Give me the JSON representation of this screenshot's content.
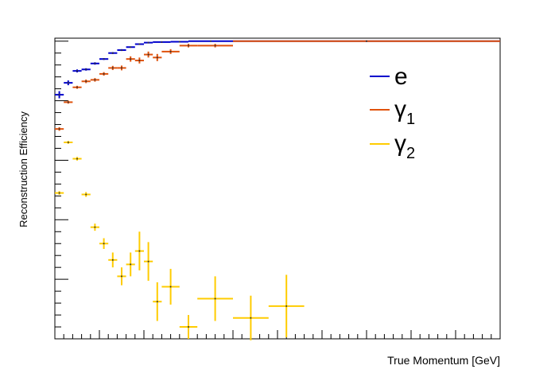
{
  "chart_data": {
    "type": "scatter",
    "xlabel": "True Momentum [GeV]",
    "ylabel": "Reconstruction Efficiency",
    "xlim": [
      0,
      5
    ],
    "ylim": [
      0,
      1.01
    ],
    "x_ticks": [
      "0",
      "0.5",
      "1",
      "1.5",
      "2",
      "2.5",
      "3",
      "3.5",
      "4",
      "4.5",
      "5"
    ],
    "y_ticks": [
      "0",
      "0.2",
      "0.4",
      "0.6",
      "0.8",
      "1"
    ],
    "legend_position": "top-right",
    "series": [
      {
        "name": "e",
        "color": "#0000cc",
        "points": [
          {
            "x": 0.05,
            "y": 0.82,
            "xerr": 0.05,
            "yerr": 0.012
          },
          {
            "x": 0.15,
            "y": 0.86,
            "xerr": 0.05,
            "yerr": 0.008
          },
          {
            "x": 0.25,
            "y": 0.9,
            "xerr": 0.05,
            "yerr": 0.005
          },
          {
            "x": 0.35,
            "y": 0.905,
            "xerr": 0.05,
            "yerr": 0.004
          },
          {
            "x": 0.45,
            "y": 0.925,
            "xerr": 0.05,
            "yerr": 0.004
          },
          {
            "x": 0.55,
            "y": 0.94,
            "xerr": 0.05,
            "yerr": 0.003
          },
          {
            "x": 0.65,
            "y": 0.96,
            "xerr": 0.05,
            "yerr": 0.003
          },
          {
            "x": 0.75,
            "y": 0.97,
            "xerr": 0.05,
            "yerr": 0.003
          },
          {
            "x": 0.85,
            "y": 0.98,
            "xerr": 0.05,
            "yerr": 0.002
          },
          {
            "x": 0.95,
            "y": 0.99,
            "xerr": 0.05,
            "yerr": 0.002
          },
          {
            "x": 1.05,
            "y": 0.995,
            "xerr": 0.05,
            "yerr": 0.002
          },
          {
            "x": 1.2,
            "y": 0.997,
            "xerr": 0.1,
            "yerr": 0.001
          },
          {
            "x": 1.4,
            "y": 0.998,
            "xerr": 0.1,
            "yerr": 0.001
          },
          {
            "x": 1.75,
            "y": 1.0,
            "xerr": 0.25,
            "yerr": 0.0
          },
          {
            "x": 3.5,
            "y": 1.0,
            "xerr": 1.5,
            "yerr": 0.0
          }
        ]
      },
      {
        "name": "γ1",
        "color": "#e0520c",
        "points": [
          {
            "x": 0.05,
            "y": 0.705,
            "xerr": 0.05,
            "yerr": 0.006
          },
          {
            "x": 0.15,
            "y": 0.795,
            "xerr": 0.05,
            "yerr": 0.005
          },
          {
            "x": 0.25,
            "y": 0.845,
            "xerr": 0.05,
            "yerr": 0.005
          },
          {
            "x": 0.35,
            "y": 0.865,
            "xerr": 0.05,
            "yerr": 0.006
          },
          {
            "x": 0.45,
            "y": 0.87,
            "xerr": 0.05,
            "yerr": 0.006
          },
          {
            "x": 0.55,
            "y": 0.89,
            "xerr": 0.05,
            "yerr": 0.006
          },
          {
            "x": 0.65,
            "y": 0.91,
            "xerr": 0.05,
            "yerr": 0.007
          },
          {
            "x": 0.75,
            "y": 0.91,
            "xerr": 0.05,
            "yerr": 0.008
          },
          {
            "x": 0.85,
            "y": 0.94,
            "xerr": 0.05,
            "yerr": 0.009
          },
          {
            "x": 0.95,
            "y": 0.935,
            "xerr": 0.05,
            "yerr": 0.01
          },
          {
            "x": 1.05,
            "y": 0.955,
            "xerr": 0.05,
            "yerr": 0.01
          },
          {
            "x": 1.15,
            "y": 0.945,
            "xerr": 0.05,
            "yerr": 0.012
          },
          {
            "x": 1.3,
            "y": 0.965,
            "xerr": 0.1,
            "yerr": 0.008
          },
          {
            "x": 1.5,
            "y": 0.985,
            "xerr": 0.1,
            "yerr": 0.006
          },
          {
            "x": 1.8,
            "y": 0.985,
            "xerr": 0.2,
            "yerr": 0.006
          },
          {
            "x": 3.5,
            "y": 1.0,
            "xerr": 1.5,
            "yerr": 0.0
          }
        ]
      },
      {
        "name": "γ2",
        "color": "#ffcc00",
        "points": [
          {
            "x": 0.05,
            "y": 0.49,
            "xerr": 0.05,
            "yerr": 0.006
          },
          {
            "x": 0.15,
            "y": 0.66,
            "xerr": 0.05,
            "yerr": 0.005
          },
          {
            "x": 0.25,
            "y": 0.605,
            "xerr": 0.05,
            "yerr": 0.006
          },
          {
            "x": 0.35,
            "y": 0.485,
            "xerr": 0.05,
            "yerr": 0.008
          },
          {
            "x": 0.45,
            "y": 0.375,
            "xerr": 0.05,
            "yerr": 0.012
          },
          {
            "x": 0.55,
            "y": 0.32,
            "xerr": 0.05,
            "yerr": 0.018
          },
          {
            "x": 0.65,
            "y": 0.265,
            "xerr": 0.05,
            "yerr": 0.025
          },
          {
            "x": 0.75,
            "y": 0.21,
            "xerr": 0.05,
            "yerr": 0.03
          },
          {
            "x": 0.85,
            "y": 0.25,
            "xerr": 0.05,
            "yerr": 0.04
          },
          {
            "x": 0.95,
            "y": 0.295,
            "xerr": 0.05,
            "yerr": 0.065
          },
          {
            "x": 1.05,
            "y": 0.26,
            "xerr": 0.05,
            "yerr": 0.065
          },
          {
            "x": 1.15,
            "y": 0.125,
            "xerr": 0.05,
            "yerr": 0.065
          },
          {
            "x": 1.3,
            "y": 0.175,
            "xerr": 0.1,
            "yerr": 0.06
          },
          {
            "x": 1.5,
            "y": 0.04,
            "xerr": 0.1,
            "yerr": 0.04
          },
          {
            "x": 1.8,
            "y": 0.135,
            "xerr": 0.2,
            "yerr": 0.075
          },
          {
            "x": 2.2,
            "y": 0.07,
            "xerr": 0.2,
            "yerr": 0.075
          },
          {
            "x": 2.6,
            "y": 0.11,
            "xerr": 0.2,
            "yerr": 0.105
          }
        ]
      }
    ]
  }
}
